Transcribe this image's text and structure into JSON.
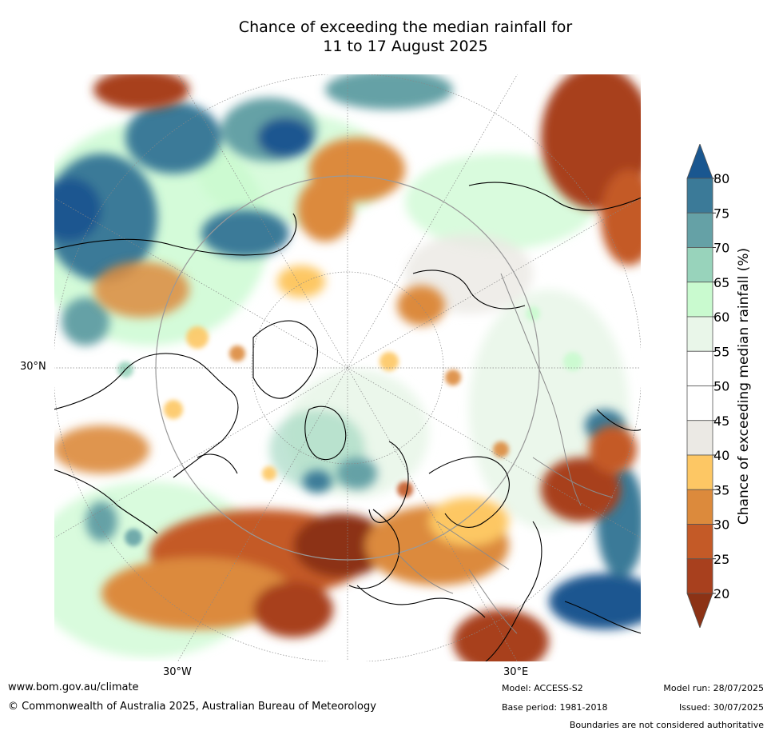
{
  "title": {
    "line1": "Chance of exceeding the median rainfall for",
    "line2": "11 to 17 August 2025"
  },
  "map": {
    "lat_label": "30°N",
    "lon_labels": [
      "30°W",
      "30°E"
    ]
  },
  "legend": {
    "title": "Chance of exceeding median rainfall (%)",
    "ticks": [
      "20",
      "25",
      "30",
      "35",
      "40",
      "45",
      "50",
      "55",
      "60",
      "65",
      "70",
      "75",
      "80"
    ],
    "bins": [
      {
        "range": "<20",
        "color": "#8c3215"
      },
      {
        "range": "20-25",
        "color": "#a8401e"
      },
      {
        "range": "25-30",
        "color": "#c45a27"
      },
      {
        "range": "30-35",
        "color": "#dc8a3c"
      },
      {
        "range": "35-40",
        "color": "#fdc764"
      },
      {
        "range": "40-45",
        "color": "#ebe9e4"
      },
      {
        "range": "45-50",
        "color": "#ffffff"
      },
      {
        "range": "50-55",
        "color": "#ffffff"
      },
      {
        "range": "55-60",
        "color": "#e9f6e9"
      },
      {
        "range": "60-65",
        "color": "#c9facf"
      },
      {
        "range": "65-70",
        "color": "#98d3bb"
      },
      {
        "range": "70-75",
        "color": "#65a1a6"
      },
      {
        "range": "75-80",
        "color": "#3b7a98"
      },
      {
        "range": ">80",
        "color": "#1a5790"
      }
    ]
  },
  "footer": {
    "website": "www.bom.gov.au/climate",
    "copyright": "© Commonwealth of Australia 2025, Australian Bureau of Meteorology",
    "model": "Model: ACCESS-S2",
    "base_period": "Base period: 1981-2018",
    "model_run": "Model run: 28/07/2025",
    "issued": "Issued: 30/07/2025",
    "disclaimer": "Boundaries are not considered authoritative"
  }
}
